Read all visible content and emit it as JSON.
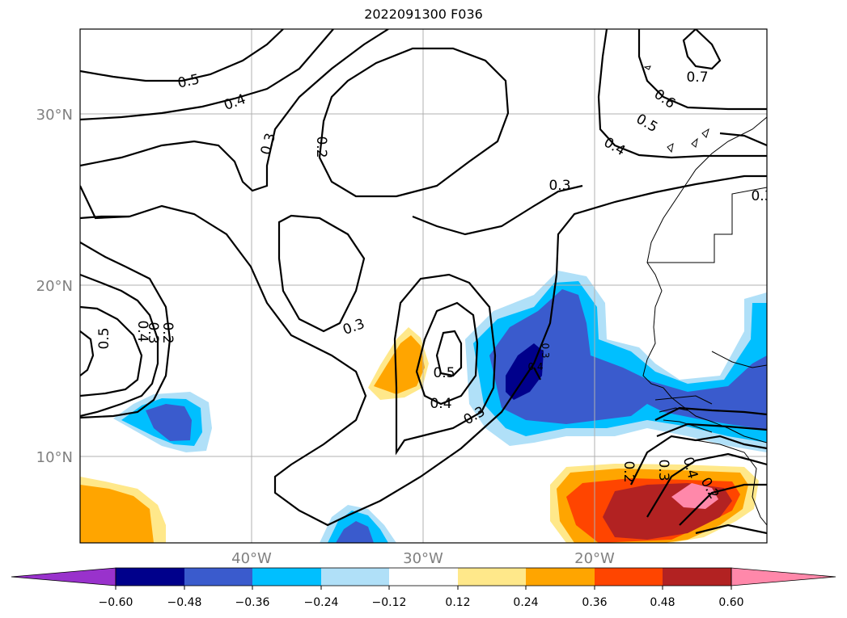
{
  "title": "2022091300 F036",
  "map": {
    "lat_labels": [
      "30°N",
      "20°N",
      "10°N"
    ],
    "lon_labels": [
      "40°W",
      "30°W",
      "20°W"
    ],
    "contour_labels": [
      "0.5",
      "0.4",
      "0.3",
      "0.2",
      "0.3",
      "0.3",
      "0.5",
      "0.4",
      "0.3",
      "0.7",
      "0.6",
      "0.5",
      "0.4",
      "0.3",
      "0.5",
      "0.4",
      "0.3",
      "0.2",
      "0.2",
      "0.3",
      "0.4",
      "0.2",
      "0.3",
      "0.4"
    ],
    "grid": true
  },
  "colorbar": {
    "ticks": [
      "−0.60",
      "−0.48",
      "−0.36",
      "−0.24",
      "−0.12",
      "0.12",
      "0.24",
      "0.36",
      "0.48",
      "0.60"
    ],
    "colors": [
      "#9932cc",
      "#00008b",
      "#3a5bcd",
      "#00bfff",
      "#b0e0f8",
      "#ffffff",
      "#ffe88a",
      "#ffa500",
      "#ff4500",
      "#b22222",
      "#ff88aa"
    ],
    "extend": "both"
  }
}
